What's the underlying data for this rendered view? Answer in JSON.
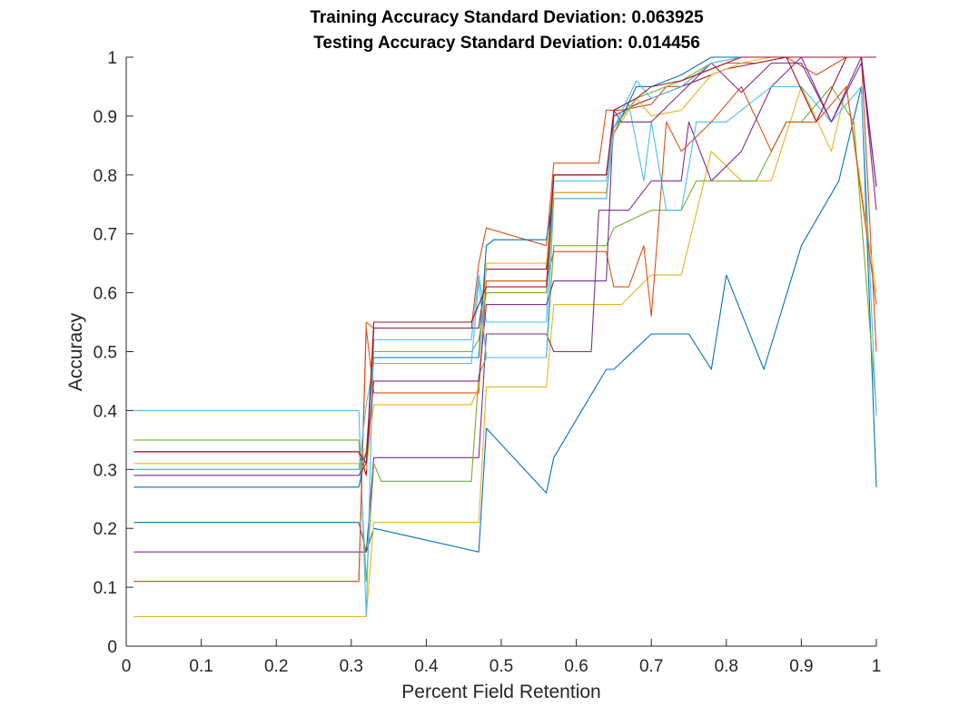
{
  "chart_data": {
    "type": "line",
    "title": [
      "Training Accuracy Standard Deviation: 0.063925",
      "Testing Accuracy Standard Deviation: 0.014456"
    ],
    "xlabel": "Percent Field Retention",
    "ylabel": "Accuracy",
    "xlim": [
      0,
      1
    ],
    "ylim": [
      0,
      1
    ],
    "xticks": [
      0,
      0.1,
      0.2,
      0.3,
      0.4,
      0.5,
      0.6,
      0.7,
      0.8,
      0.9,
      1
    ],
    "xtick_labels": [
      "0",
      "0.1",
      "0.2",
      "0.3",
      "0.4",
      "0.5",
      "0.6",
      "0.7",
      "0.8",
      "0.9",
      "1"
    ],
    "yticks": [
      0,
      0.1,
      0.2,
      0.3,
      0.4,
      0.5,
      0.6,
      0.7,
      0.8,
      0.9,
      1
    ],
    "ytick_labels": [
      "0",
      "0.1",
      "0.2",
      "0.3",
      "0.4",
      "0.5",
      "0.6",
      "0.7",
      "0.8",
      "0.9",
      "1"
    ],
    "grid": false,
    "legend": "none",
    "series": [
      {
        "color": "#0072BD",
        "x": [
          0.01,
          0.31,
          0.32,
          0.33,
          0.47,
          0.48,
          0.56,
          0.57,
          0.64,
          0.65,
          0.7,
          0.75,
          0.78,
          0.8,
          0.85,
          0.9,
          0.95,
          0.98,
          1.0
        ],
        "y": [
          0.21,
          0.21,
          0.16,
          0.2,
          0.16,
          0.37,
          0.26,
          0.32,
          0.47,
          0.47,
          0.53,
          0.53,
          0.47,
          0.63,
          0.47,
          0.68,
          0.79,
          0.95,
          0.27
        ]
      },
      {
        "color": "#D95319",
        "x": [
          0.01,
          0.31,
          0.32,
          0.33,
          0.46,
          0.47,
          0.48,
          0.56,
          0.57,
          0.63,
          0.64,
          0.66,
          0.7,
          0.72,
          0.74,
          0.76,
          0.8,
          0.84,
          0.88,
          0.92,
          0.96,
          0.98,
          1.0
        ],
        "y": [
          0.11,
          0.11,
          0.55,
          0.54,
          0.54,
          0.65,
          0.71,
          0.68,
          0.82,
          0.82,
          0.91,
          0.91,
          0.92,
          0.95,
          0.95,
          0.97,
          0.99,
          0.99,
          1.0,
          0.97,
          1.0,
          1.0,
          0.5
        ]
      },
      {
        "color": "#EDB120",
        "x": [
          0.01,
          0.32,
          0.33,
          0.47,
          0.48,
          0.56,
          0.57,
          0.64,
          0.66,
          0.7,
          0.74,
          0.78,
          0.82,
          0.86,
          0.9,
          0.94,
          0.96,
          1.0
        ],
        "y": [
          0.05,
          0.05,
          0.21,
          0.21,
          0.44,
          0.44,
          0.58,
          0.58,
          0.58,
          0.63,
          0.63,
          0.84,
          0.79,
          0.79,
          0.95,
          0.84,
          0.95,
          0.6
        ]
      },
      {
        "color": "#7E2F8E",
        "x": [
          0.01,
          0.31,
          0.32,
          0.33,
          0.47,
          0.48,
          0.5,
          0.56,
          0.57,
          0.62,
          0.63,
          0.66,
          0.67,
          0.7,
          0.74,
          0.75,
          0.78,
          0.82,
          0.86,
          0.9,
          0.94,
          0.98,
          1.0
        ],
        "y": [
          0.16,
          0.16,
          0.16,
          0.32,
          0.32,
          0.53,
          0.53,
          0.53,
          0.5,
          0.5,
          0.74,
          0.74,
          0.74,
          0.79,
          0.79,
          0.89,
          0.79,
          0.84,
          0.95,
          1.0,
          0.89,
          1.0,
          0.74
        ]
      },
      {
        "color": "#77AC30",
        "x": [
          0.01,
          0.31,
          0.32,
          0.33,
          0.34,
          0.46,
          0.47,
          0.48,
          0.56,
          0.57,
          0.64,
          0.65,
          0.7,
          0.74,
          0.76,
          0.8,
          0.84,
          0.88,
          0.9,
          0.94,
          0.97,
          1.0
        ],
        "y": [
          0.35,
          0.35,
          0.11,
          0.31,
          0.28,
          0.28,
          0.46,
          0.49,
          0.49,
          0.68,
          0.68,
          0.71,
          0.74,
          0.74,
          0.79,
          0.79,
          0.79,
          0.89,
          0.89,
          0.95,
          0.89,
          0.4
        ]
      },
      {
        "color": "#4DBEEE",
        "x": [
          0.01,
          0.31,
          0.32,
          0.33,
          0.46,
          0.47,
          0.48,
          0.56,
          0.57,
          0.64,
          0.65,
          0.67,
          0.69,
          0.7,
          0.72,
          0.74,
          0.76,
          0.8,
          0.86,
          0.9,
          0.94,
          0.98,
          1.0
        ],
        "y": [
          0.4,
          0.4,
          0.05,
          0.52,
          0.52,
          0.63,
          0.55,
          0.55,
          0.79,
          0.79,
          0.88,
          0.92,
          0.79,
          0.89,
          0.74,
          0.74,
          0.89,
          0.89,
          0.95,
          0.95,
          0.89,
          0.95,
          0.39
        ]
      },
      {
        "color": "#A2142F",
        "x": [
          0.01,
          0.31,
          0.32,
          0.33,
          0.34,
          0.46,
          0.47,
          0.48,
          0.56,
          0.57,
          0.64,
          0.65,
          0.68,
          0.7,
          0.74,
          0.78,
          0.8,
          0.84,
          0.88,
          0.92,
          0.96,
          0.98,
          1.0
        ],
        "y": [
          0.33,
          0.33,
          0.29,
          0.54,
          0.54,
          0.54,
          0.54,
          0.64,
          0.64,
          0.8,
          0.8,
          0.9,
          0.92,
          0.93,
          0.95,
          0.97,
          0.98,
          0.99,
          1.0,
          0.89,
          1.0,
          1.0,
          0.78
        ]
      },
      {
        "color": "#0072BD",
        "x": [
          0.01,
          0.31,
          0.32,
          0.33,
          0.47,
          0.48,
          0.49,
          0.56,
          0.57,
          0.64,
          0.65,
          0.68,
          0.7,
          0.74,
          0.78,
          0.82,
          0.86,
          0.9,
          0.94,
          0.98,
          1.0
        ],
        "y": [
          0.27,
          0.27,
          0.33,
          0.49,
          0.49,
          0.68,
          0.69,
          0.69,
          0.77,
          0.77,
          0.87,
          0.95,
          0.95,
          0.97,
          1.0,
          1.0,
          1.0,
          1.0,
          1.0,
          1.0,
          1.0
        ]
      },
      {
        "color": "#D95319",
        "x": [
          0.01,
          0.31,
          0.32,
          0.33,
          0.46,
          0.47,
          0.48,
          0.56,
          0.57,
          0.64,
          0.65,
          0.67,
          0.69,
          0.7,
          0.72,
          0.74,
          0.78,
          0.82,
          0.86,
          0.88,
          0.92,
          0.96,
          1.0
        ],
        "y": [
          0.11,
          0.11,
          0.54,
          0.43,
          0.43,
          0.43,
          0.62,
          0.62,
          0.67,
          0.67,
          0.61,
          0.61,
          0.68,
          0.56,
          0.89,
          0.84,
          0.89,
          0.95,
          0.84,
          0.89,
          0.89,
          0.95,
          0.58
        ]
      },
      {
        "color": "#EDB120",
        "x": [
          0.01,
          0.31,
          0.32,
          0.33,
          0.46,
          0.47,
          0.48,
          0.56,
          0.57,
          0.64,
          0.65,
          0.68,
          0.7,
          0.74,
          0.78,
          0.82,
          0.86,
          0.9,
          0.94,
          0.98,
          1.0
        ],
        "y": [
          0.31,
          0.31,
          0.3,
          0.41,
          0.41,
          0.44,
          0.65,
          0.65,
          0.77,
          0.77,
          0.87,
          0.93,
          0.9,
          0.91,
          0.97,
          0.99,
          1.0,
          1.0,
          1.0,
          1.0,
          1.0
        ]
      },
      {
        "color": "#7E2F8E",
        "x": [
          0.01,
          0.31,
          0.32,
          0.33,
          0.46,
          0.47,
          0.48,
          0.56,
          0.57,
          0.64,
          0.65,
          0.66,
          0.69,
          0.7,
          0.74,
          0.78,
          0.82,
          0.86,
          0.9,
          0.94,
          0.98,
          1.0
        ],
        "y": [
          0.29,
          0.29,
          0.31,
          0.45,
          0.45,
          0.45,
          0.58,
          0.58,
          0.62,
          0.62,
          0.91,
          0.89,
          0.89,
          0.89,
          0.94,
          0.99,
          0.94,
          0.99,
          0.99,
          0.89,
          0.99,
          0.78
        ]
      },
      {
        "color": "#77AC30",
        "x": [
          0.01,
          0.31,
          0.32,
          0.33,
          0.46,
          0.47,
          0.48,
          0.56,
          0.57,
          0.64,
          0.65,
          0.68,
          0.7,
          0.74,
          0.78,
          0.82,
          0.86,
          0.9,
          0.94,
          0.98,
          1.0
        ],
        "y": [
          0.3,
          0.3,
          0.33,
          0.5,
          0.5,
          0.52,
          0.6,
          0.6,
          0.76,
          0.76,
          0.88,
          0.93,
          0.94,
          0.96,
          0.99,
          1.0,
          1.0,
          1.0,
          1.0,
          1.0,
          1.0
        ]
      },
      {
        "color": "#4DBEEE",
        "x": [
          0.01,
          0.31,
          0.32,
          0.33,
          0.46,
          0.47,
          0.48,
          0.56,
          0.57,
          0.64,
          0.65,
          0.68,
          0.7,
          0.74,
          0.78,
          0.82,
          0.86,
          0.9,
          0.94,
          0.98,
          1.0
        ],
        "y": [
          0.3,
          0.3,
          0.41,
          0.48,
          0.48,
          0.62,
          0.49,
          0.49,
          0.76,
          0.76,
          0.88,
          0.96,
          0.93,
          0.95,
          0.99,
          1.0,
          1.0,
          1.0,
          1.0,
          1.0,
          1.0
        ]
      },
      {
        "color": "#A2142F",
        "x": [
          0.01,
          0.31,
          0.32,
          0.33,
          0.46,
          0.47,
          0.48,
          0.56,
          0.57,
          0.64,
          0.65,
          0.68,
          0.7,
          0.74,
          0.78,
          0.82,
          0.86,
          0.9,
          0.94,
          0.98,
          1.0
        ],
        "y": [
          0.33,
          0.33,
          0.31,
          0.55,
          0.55,
          0.58,
          0.61,
          0.61,
          0.8,
          0.8,
          0.91,
          0.93,
          0.95,
          0.96,
          0.98,
          1.0,
          1.0,
          1.0,
          1.0,
          1.0,
          1.0
        ]
      }
    ]
  }
}
